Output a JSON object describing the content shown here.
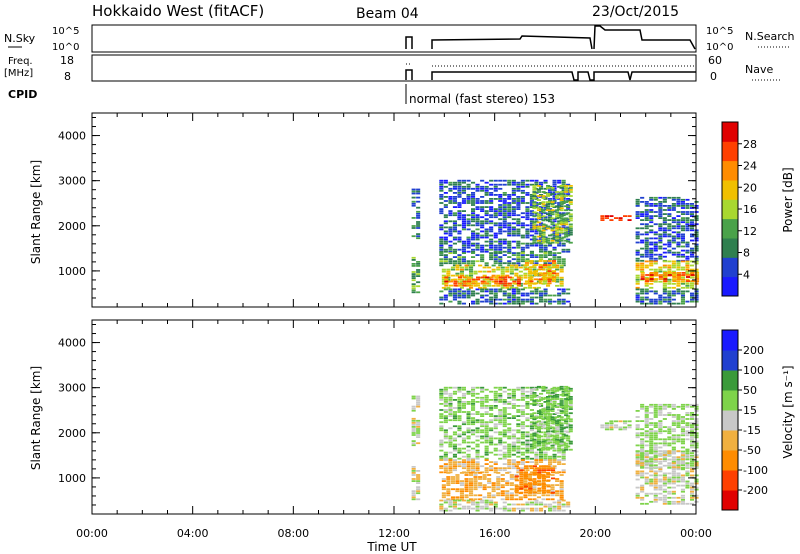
{
  "header": {
    "title": "Hokkaido West (fitACF)",
    "beam": "Beam 04",
    "date": "23/Oct/2015"
  },
  "status_panels": {
    "nsky_label": "N.Sky",
    "nsearch_label": "N.Search",
    "noise_ticks": [
      "10^5",
      "10^0"
    ],
    "freq_label_1": "Freq.",
    "freq_label_2": "[MHz]",
    "freq_ticks": [
      "18",
      "8"
    ],
    "nave_label": "Nave",
    "nave_ticks": [
      "60",
      "0"
    ],
    "cpid_label": "CPID",
    "cpid_text": "normal (fast stereo) 153"
  },
  "colors": {
    "power_scale": [
      "#1a1aff",
      "#2040d0",
      "#2f7f4f",
      "#4aa24a",
      "#a8d830",
      "#f0c000",
      "#ff8c00",
      "#ff4000",
      "#e00000"
    ],
    "velocity_scale": [
      "#e00000",
      "#ff4000",
      "#ff8c00",
      "#f0b040",
      "#c8c8c8",
      "#7ed34a",
      "#3a9a3a",
      "#2040d0",
      "#1a1aff"
    ]
  },
  "chart_data": [
    {
      "type": "heatmap",
      "name_shown": "power",
      "ylabel": "Slant Range [km]",
      "colorbar_label": "Power [dB]",
      "colorbar_ticks": [
        "28",
        "24",
        "20",
        "16",
        "12",
        "8",
        "4"
      ],
      "x_ticks": [
        "00:00",
        "04:00",
        "08:00",
        "12:00",
        "16:00",
        "20:00",
        "00:00"
      ],
      "y_ticks": [
        "4000",
        "3000",
        "2000",
        "1000"
      ],
      "xlim_hours": [
        0,
        24
      ],
      "ylim_km": [
        200,
        4500
      ],
      "regions": [
        {
          "t0": 12.7,
          "t1": 12.9,
          "r0": 1700,
          "r1": 2800,
          "value": 8
        },
        {
          "t0": 12.7,
          "t1": 12.9,
          "r0": 500,
          "r1": 1300,
          "value": 12
        },
        {
          "t0": 13.8,
          "t1": 19.0,
          "r0": 1400,
          "r1": 3000,
          "value": 6
        },
        {
          "t0": 13.8,
          "t1": 18.8,
          "r0": 1100,
          "r1": 1400,
          "value": 10
        },
        {
          "t0": 13.9,
          "t1": 18.6,
          "r0": 600,
          "r1": 1100,
          "value": 17
        },
        {
          "t0": 14.0,
          "t1": 17.0,
          "r0": 650,
          "r1": 850,
          "value": 24
        },
        {
          "t0": 17.2,
          "t1": 18.3,
          "r0": 700,
          "r1": 1200,
          "value": 22
        },
        {
          "t0": 17.5,
          "t1": 19.0,
          "r0": 1600,
          "r1": 2900,
          "value": 14
        },
        {
          "t0": 13.8,
          "t1": 19.0,
          "r0": 250,
          "r1": 600,
          "value": 7
        },
        {
          "t0": 20.2,
          "t1": 21.3,
          "r0": 2100,
          "r1": 2200,
          "value": 27
        },
        {
          "t0": 21.6,
          "t1": 24.0,
          "r0": 1200,
          "r1": 2600,
          "value": 6
        },
        {
          "t0": 21.6,
          "t1": 24.0,
          "r0": 600,
          "r1": 1200,
          "value": 18
        },
        {
          "t0": 21.8,
          "t1": 24.0,
          "r0": 750,
          "r1": 950,
          "value": 24
        },
        {
          "t0": 21.6,
          "t1": 24.0,
          "r0": 250,
          "r1": 600,
          "value": 8
        }
      ]
    },
    {
      "type": "heatmap",
      "name_shown": "velocity",
      "ylabel": "Slant Range [km]",
      "xlabel": "Time UT",
      "colorbar_label": "Velocity [m s⁻¹]",
      "colorbar_ticks": [
        "200",
        "100",
        "50",
        "15",
        "-15",
        "-50",
        "-100",
        "-200"
      ],
      "x_ticks": [
        "00:00",
        "04:00",
        "08:00",
        "12:00",
        "16:00",
        "20:00",
        "00:00"
      ],
      "y_ticks": [
        "4000",
        "3000",
        "2000",
        "1000"
      ],
      "xlim_hours": [
        0,
        24
      ],
      "ylim_km": [
        200,
        4500
      ],
      "regions": [
        {
          "t0": 12.7,
          "t1": 12.9,
          "r0": 1700,
          "r1": 2800,
          "value": 0
        },
        {
          "t0": 12.7,
          "t1": 12.9,
          "r0": 500,
          "r1": 1300,
          "value": 0
        },
        {
          "t0": 13.8,
          "t1": 19.0,
          "r0": 1400,
          "r1": 3000,
          "value": 30
        },
        {
          "t0": 13.8,
          "t1": 18.8,
          "r0": 1100,
          "r1": 1400,
          "value": -30
        },
        {
          "t0": 13.9,
          "t1": 18.6,
          "r0": 500,
          "r1": 1100,
          "value": -40
        },
        {
          "t0": 16.8,
          "t1": 18.3,
          "r0": 650,
          "r1": 1250,
          "value": -80
        },
        {
          "t0": 17.5,
          "t1": 19.0,
          "r0": 1600,
          "r1": 3000,
          "value": 40
        },
        {
          "t0": 13.8,
          "t1": 19.0,
          "r0": 250,
          "r1": 500,
          "value": 0
        },
        {
          "t0": 20.2,
          "t1": 21.3,
          "r0": 2050,
          "r1": 2250,
          "value": 0
        },
        {
          "t0": 21.6,
          "t1": 24.0,
          "r0": 1200,
          "r1": 2600,
          "value": 20
        },
        {
          "t0": 21.6,
          "t1": 24.0,
          "r0": 400,
          "r1": 1600,
          "value": 0
        }
      ]
    }
  ]
}
